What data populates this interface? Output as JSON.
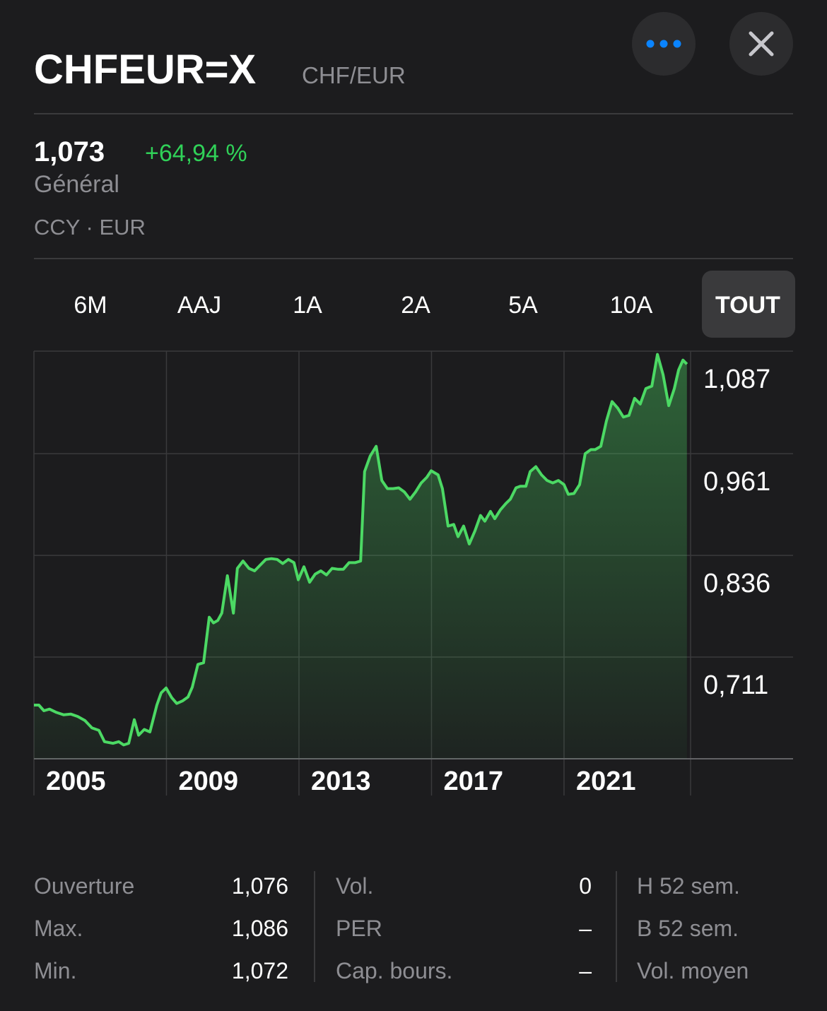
{
  "header": {
    "symbol": "CHFEUR=X",
    "name": "CHF/EUR"
  },
  "quote": {
    "price": "1,073",
    "change": "+64,94 %",
    "label": "Général",
    "exchange": "CCY · EUR"
  },
  "tabs": [
    "6M",
    "AAJ",
    "1A",
    "2A",
    "5A",
    "10A",
    "TOUT"
  ],
  "selected_tab": 6,
  "chart_data": {
    "type": "line",
    "color": "#4cd964",
    "x": [
      2005.0,
      2005.15,
      2005.3,
      2005.47,
      2005.68,
      2005.9,
      2006.11,
      2006.32,
      2006.54,
      2006.75,
      2006.96,
      2007.13,
      2007.39,
      2007.56,
      2007.71,
      2007.86,
      2008.03,
      2008.16,
      2008.33,
      2008.5,
      2008.71,
      2008.84,
      2008.99,
      2009.16,
      2009.31,
      2009.48,
      2009.65,
      2009.78,
      2009.95,
      2010.12,
      2010.29,
      2010.42,
      2010.55,
      2010.67,
      2010.84,
      2011.02,
      2011.14,
      2011.31,
      2011.49,
      2011.66,
      2011.83,
      2012.0,
      2012.17,
      2012.34,
      2012.51,
      2012.68,
      2012.85,
      2012.98,
      2013.15,
      2013.32,
      2013.49,
      2013.66,
      2013.83,
      2014.0,
      2014.17,
      2014.34,
      2014.51,
      2014.69,
      2014.86,
      2014.98,
      2015.15,
      2015.33,
      2015.5,
      2015.67,
      2015.84,
      2016.01,
      2016.18,
      2016.35,
      2016.52,
      2016.69,
      2016.86,
      2016.99,
      2017.2,
      2017.33,
      2017.5,
      2017.67,
      2017.8,
      2017.97,
      2018.14,
      2018.31,
      2018.48,
      2018.61,
      2018.78,
      2018.91,
      2019.08,
      2019.25,
      2019.38,
      2019.55,
      2019.68,
      2019.85,
      2019.98,
      2020.15,
      2020.32,
      2020.49,
      2020.66,
      2020.83,
      2021.0,
      2021.13,
      2021.3,
      2021.47,
      2021.64,
      2021.81,
      2021.94,
      2022.11,
      2022.28,
      2022.45,
      2022.62,
      2022.79,
      2022.96,
      2023.13,
      2023.3,
      2023.47,
      2023.65,
      2023.82,
      2023.99,
      2024.16,
      2024.33,
      2024.46,
      2024.59,
      2024.71
    ],
    "values": [
      0.652,
      0.652,
      0.645,
      0.647,
      0.643,
      0.64,
      0.641,
      0.638,
      0.633,
      0.624,
      0.621,
      0.607,
      0.605,
      0.607,
      0.603,
      0.605,
      0.634,
      0.615,
      0.622,
      0.619,
      0.652,
      0.667,
      0.673,
      0.661,
      0.654,
      0.657,
      0.662,
      0.674,
      0.702,
      0.704,
      0.76,
      0.753,
      0.756,
      0.765,
      0.811,
      0.765,
      0.82,
      0.829,
      0.82,
      0.817,
      0.824,
      0.831,
      0.832,
      0.831,
      0.826,
      0.831,
      0.827,
      0.806,
      0.822,
      0.803,
      0.813,
      0.817,
      0.812,
      0.82,
      0.819,
      0.819,
      0.827,
      0.827,
      0.829,
      0.939,
      0.958,
      0.97,
      0.928,
      0.918,
      0.918,
      0.919,
      0.914,
      0.905,
      0.914,
      0.925,
      0.932,
      0.94,
      0.935,
      0.918,
      0.872,
      0.874,
      0.859,
      0.872,
      0.85,
      0.866,
      0.885,
      0.878,
      0.89,
      0.881,
      0.892,
      0.9,
      0.905,
      0.919,
      0.921,
      0.921,
      0.939,
      0.945,
      0.935,
      0.928,
      0.925,
      0.928,
      0.923,
      0.911,
      0.912,
      0.923,
      0.961,
      0.966,
      0.966,
      0.97,
      1.001,
      1.025,
      1.017,
      1.006,
      1.008,
      1.029,
      1.022,
      1.041,
      1.044,
      1.083,
      1.058,
      1.02,
      1.041,
      1.064,
      1.076,
      1.071
    ],
    "xlim": [
      2005,
      2024.82
    ],
    "xticks": [
      2005,
      2009,
      2013,
      2017,
      2021
    ],
    "ylim": [
      0.586,
      1.087
    ],
    "yticks": [
      {
        "value": 1.087,
        "label": "1,087"
      },
      {
        "value": 0.961,
        "label": "0,961"
      },
      {
        "value": 0.836,
        "label": "0,836"
      },
      {
        "value": 0.711,
        "label": "0,711"
      }
    ],
    "grid": true
  },
  "stats": [
    [
      {
        "label": "Ouverture",
        "value": "1,076"
      },
      {
        "label": "Max.",
        "value": "1,086"
      },
      {
        "label": "Min.",
        "value": "1,072"
      }
    ],
    [
      {
        "label": "Vol.",
        "value": "0"
      },
      {
        "label": "PER",
        "value": "–"
      },
      {
        "label": "Cap. bours.",
        "value": "–"
      }
    ],
    [
      {
        "label": "H 52 sem."
      },
      {
        "label": "B 52 sem."
      },
      {
        "label": "Vol. moyen"
      }
    ]
  ]
}
